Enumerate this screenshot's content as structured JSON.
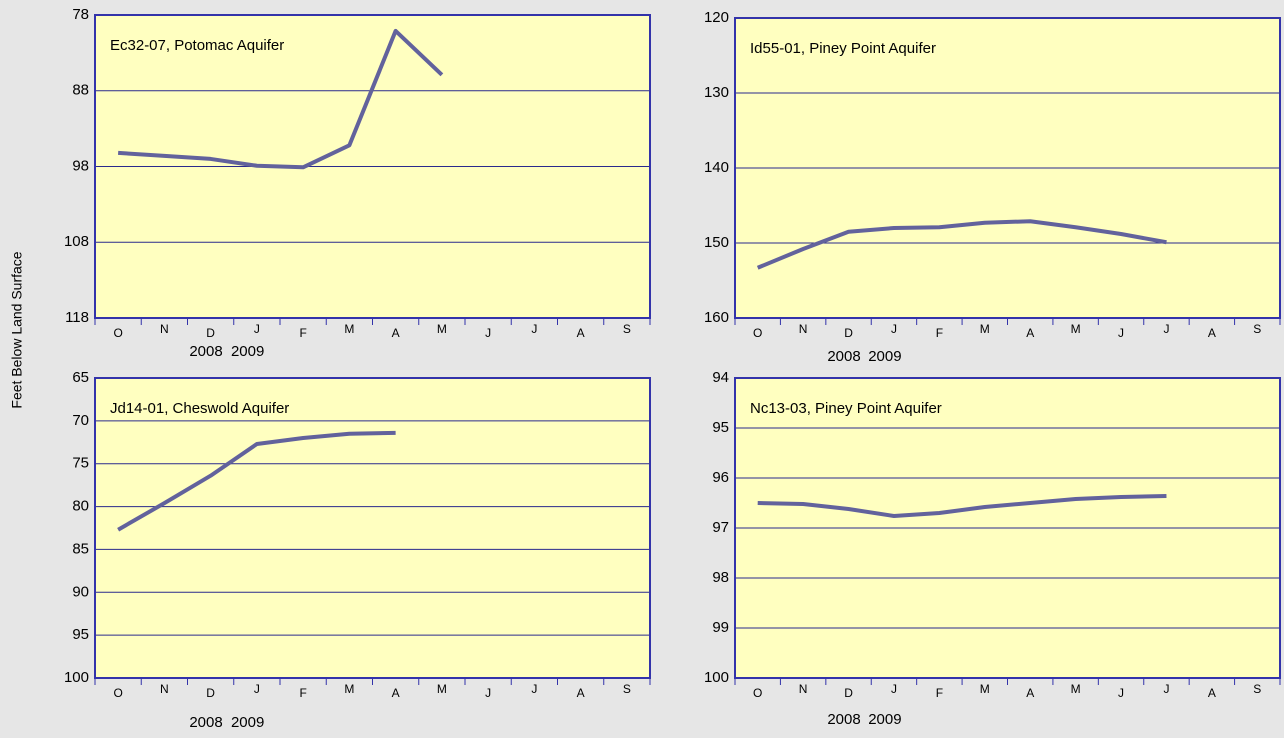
{
  "y_axis_label": "Feet Below Land Surface",
  "chart_data": [
    {
      "type": "line",
      "title": "Ec32-07, Potomac Aquifer",
      "categories": [
        "O",
        "N",
        "D",
        "J",
        "F",
        "M",
        "A",
        "M",
        "J",
        "J",
        "A",
        "S"
      ],
      "year_labels": [
        "2008",
        "2009"
      ],
      "series": [
        {
          "color": "#62629c",
          "values": [
            96.2,
            96.6,
            97.0,
            97.9,
            98.1,
            95.2,
            80.1,
            85.9,
            null,
            null,
            null,
            null
          ]
        }
      ],
      "ylim": [
        78,
        118
      ],
      "yticks": [
        78,
        88,
        98,
        108,
        118
      ],
      "y_reversed": true,
      "grid": true,
      "background": "#ffffc0"
    },
    {
      "type": "line",
      "title": "Id55-01, Piney Point Aquifer",
      "categories": [
        "O",
        "N",
        "D",
        "J",
        "F",
        "M",
        "A",
        "M",
        "J",
        "J",
        "A",
        "S"
      ],
      "year_labels": [
        "2008",
        "2009"
      ],
      "series": [
        {
          "color": "#62629c",
          "values": [
            153.3,
            150.8,
            148.5,
            148.0,
            147.9,
            147.3,
            147.1,
            147.9,
            148.8,
            149.9,
            null,
            null
          ]
        }
      ],
      "ylim": [
        120,
        160
      ],
      "yticks": [
        120,
        130,
        140,
        150,
        160
      ],
      "y_reversed": true,
      "grid": true,
      "background": "#ffffc0"
    },
    {
      "type": "line",
      "title": "Jd14-01, Cheswold Aquifer",
      "categories": [
        "O",
        "N",
        "D",
        "J",
        "F",
        "M",
        "A",
        "M",
        "J",
        "J",
        "A",
        "S"
      ],
      "year_labels": [
        "2008",
        "2009"
      ],
      "series": [
        {
          "color": "#62629c",
          "values": [
            82.7,
            79.6,
            76.4,
            72.7,
            72.0,
            71.5,
            71.4,
            null,
            null,
            null,
            null,
            null
          ]
        }
      ],
      "ylim": [
        65,
        100
      ],
      "yticks": [
        65,
        70,
        75,
        80,
        85,
        90,
        95,
        100
      ],
      "y_reversed": true,
      "grid": true,
      "background": "#ffffc0"
    },
    {
      "type": "line",
      "title": "Nc13-03, Piney Point Aquifer",
      "categories": [
        "O",
        "N",
        "D",
        "J",
        "F",
        "M",
        "A",
        "M",
        "J",
        "J",
        "A",
        "S"
      ],
      "year_labels": [
        "2008",
        "2009"
      ],
      "series": [
        {
          "color": "#62629c",
          "values": [
            96.5,
            96.52,
            96.62,
            96.76,
            96.7,
            96.58,
            96.5,
            96.42,
            96.38,
            96.36,
            null,
            null
          ]
        }
      ],
      "ylim": [
        94,
        100
      ],
      "yticks": [
        94,
        95,
        96,
        97,
        98,
        99,
        100
      ],
      "y_reversed": true,
      "grid": true,
      "background": "#ffffc0"
    }
  ]
}
